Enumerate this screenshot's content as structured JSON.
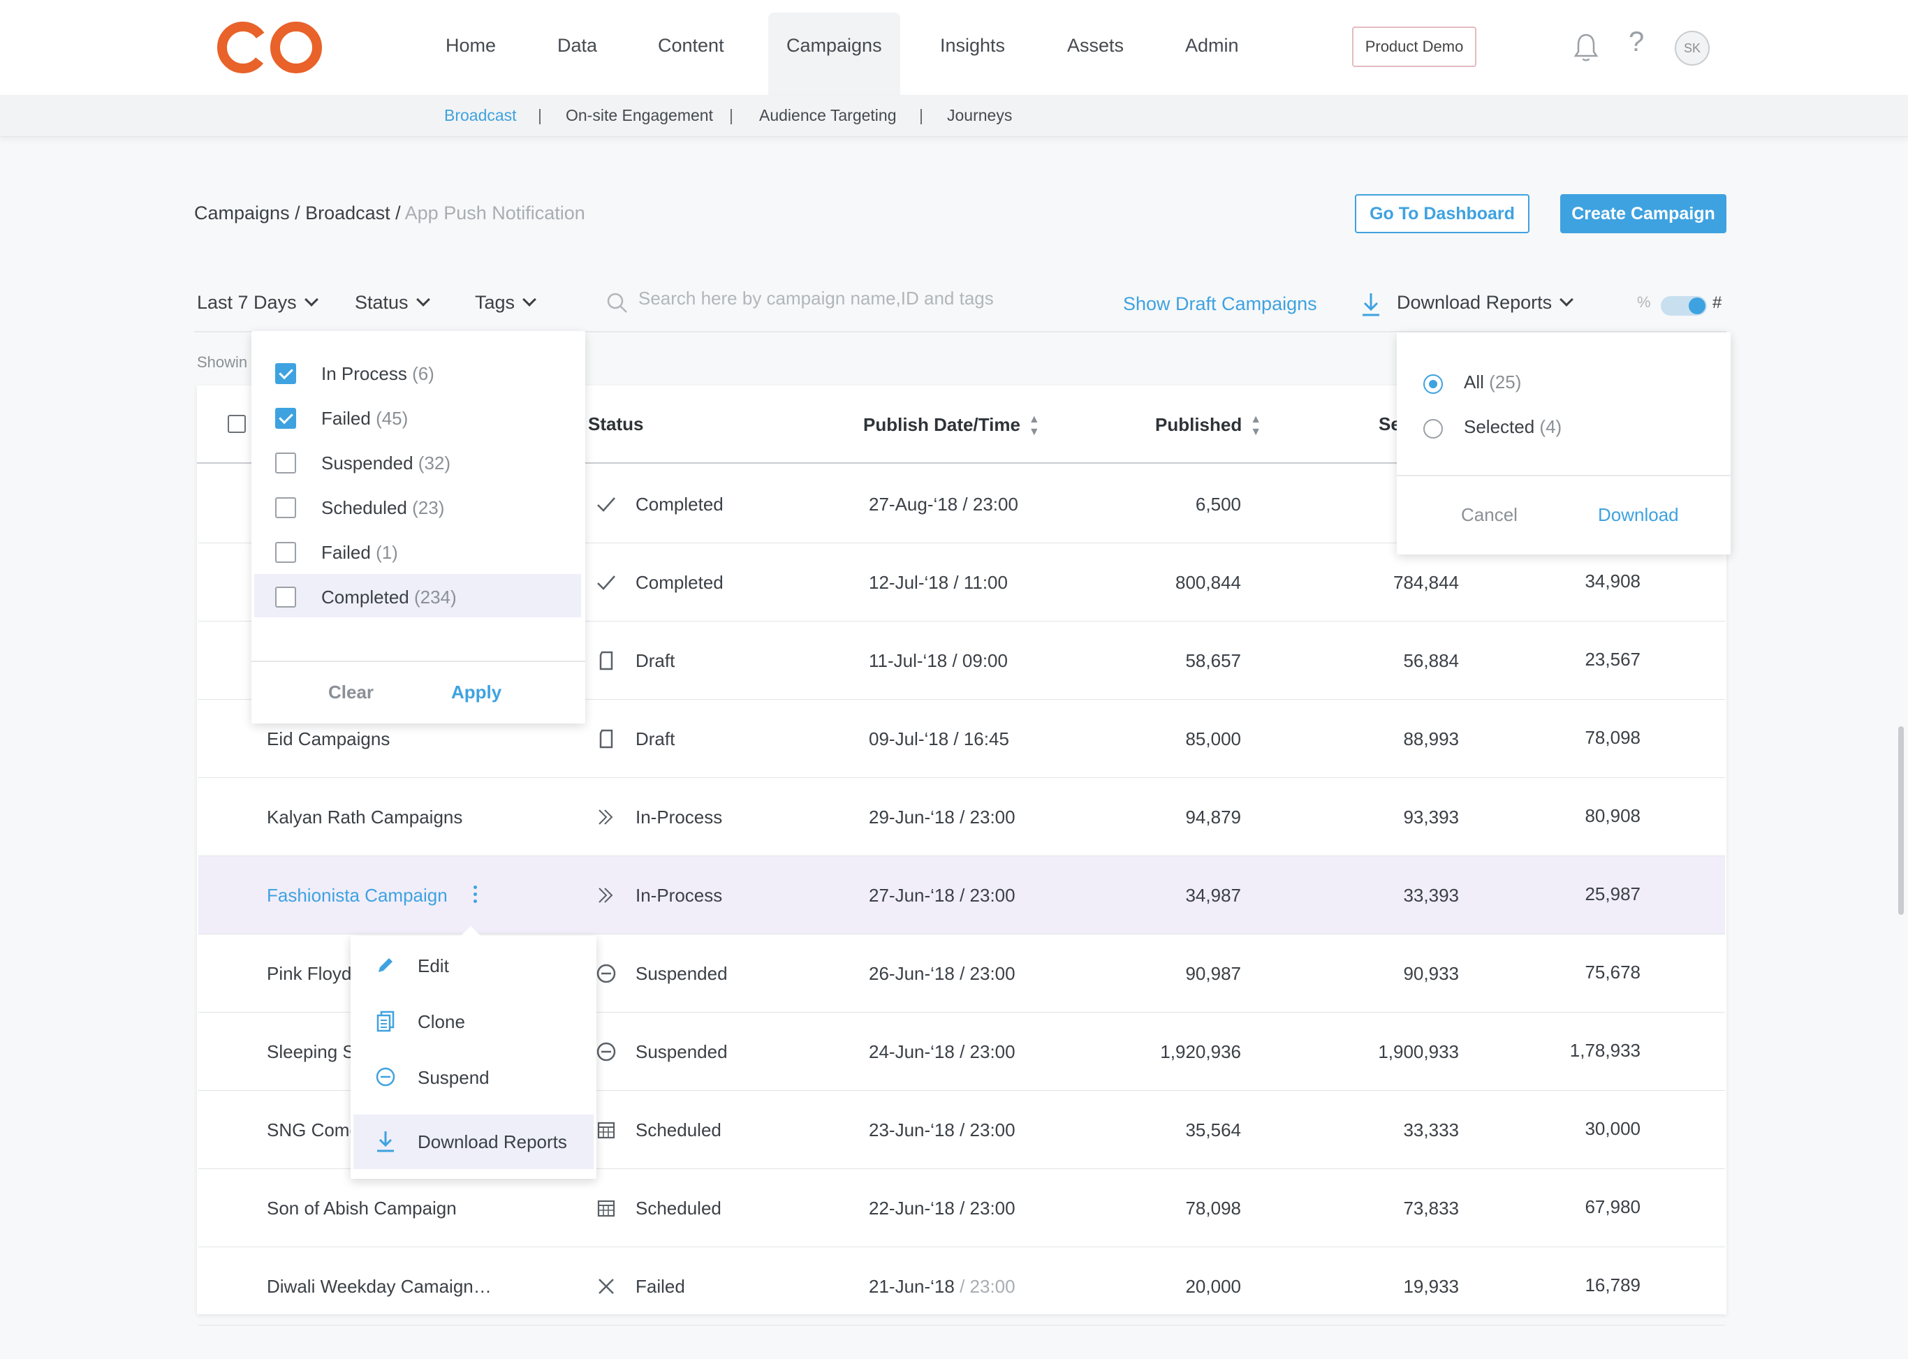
{
  "nav": {
    "items": [
      {
        "label": "Home"
      },
      {
        "label": "Data"
      },
      {
        "label": "Content"
      },
      {
        "label": "Campaigns"
      },
      {
        "label": "Insights"
      },
      {
        "label": "Assets"
      },
      {
        "label": "Admin"
      }
    ],
    "active": "Campaigns",
    "product_demo": "Product Demo",
    "help_glyph": "?",
    "avatar_initials": "SK",
    "bell_icon": "bell-icon",
    "logo_color": "#e8622a"
  },
  "subnav": {
    "items": [
      {
        "label": "Broadcast"
      },
      {
        "label": "On-site Engagement"
      },
      {
        "label": "Audience Targeting"
      },
      {
        "label": "Journeys"
      }
    ],
    "separator": "|",
    "active": "Broadcast"
  },
  "breadcrumb": {
    "part1": "Campaigns / Broadcast / ",
    "current": "App Push Notification"
  },
  "actions": {
    "go_dashboard": "Go To Dashboard",
    "create_campaign": "Create Campaign"
  },
  "filters": {
    "date": "Last 7 Days",
    "status": "Status",
    "tags": "Tags",
    "search_placeholder": "Search here by campaign name,ID and tags",
    "show_draft": "Show Draft Campaigns",
    "download_reports": "Download Reports",
    "toggle_left": "%",
    "toggle_right": "#",
    "showing_prefix": "Showin"
  },
  "table": {
    "headers": {
      "status": "Status",
      "publish": "Publish  Date/Time",
      "published": "Published",
      "sent": "Se"
    },
    "rows": [
      {
        "name": "",
        "status": "Completed",
        "status_icon": "check-icon",
        "date": "27-Aug-‘18 / 23:00",
        "date_time": "",
        "published": "6,500",
        "sent": "",
        "clicked": ""
      },
      {
        "name": "",
        "status": "Completed",
        "status_icon": "check-icon",
        "date": "12-Jul-‘18 / 11:00",
        "date_time": "",
        "published": "800,844",
        "sent": "784,844",
        "clicked": "34,908"
      },
      {
        "name": "",
        "status": "Draft",
        "status_icon": "draft-icon",
        "date": "11-Jul-‘18 / 09:00",
        "date_time": "",
        "published": "58,657",
        "sent": "56,884",
        "clicked": "23,567"
      },
      {
        "name": "Eid Campaigns",
        "status": "Draft",
        "status_icon": "draft-icon",
        "date": "09-Jul-‘18 / 16:45",
        "date_time": "",
        "published": "85,000",
        "sent": "88,993",
        "clicked": "78,098"
      },
      {
        "name": "Kalyan Rath Campaigns",
        "status": "In-Process",
        "status_icon": "in-process-icon",
        "date": "29-Jun-‘18 / 23:00",
        "date_time": "",
        "published": "94,879",
        "sent": "93,393",
        "clicked": "80,908"
      },
      {
        "name": "Fashionista Campaign",
        "status": "In-Process",
        "status_icon": "in-process-icon",
        "date": "27-Jun-‘18 / 23:00",
        "date_time": "",
        "published": "34,987",
        "sent": "33,393",
        "clicked": "25,987"
      },
      {
        "name": "Pink Floyd",
        "status": "Suspended",
        "status_icon": "suspended-icon",
        "date": "26-Jun-‘18 / 23:00",
        "date_time": "",
        "published": "90,987",
        "sent": "90,933",
        "clicked": "75,678"
      },
      {
        "name": "Sleeping S",
        "status": "Suspended",
        "status_icon": "suspended-icon",
        "date": "24-Jun-‘18 / 23:00",
        "date_time": "",
        "published": "1,920,936",
        "sent": "1,900,933",
        "clicked": "1,78,933"
      },
      {
        "name": "SNG Come",
        "status": "Scheduled",
        "status_icon": "scheduled-icon",
        "date": "23-Jun-‘18 / 23:00",
        "date_time": "",
        "published": "35,564",
        "sent": "33,333",
        "clicked": "30,000"
      },
      {
        "name": "Son of Abish Campaign",
        "status": "Scheduled",
        "status_icon": "scheduled-icon",
        "date": "22-Jun-‘18 / 23:00",
        "date_time": "",
        "published": "78,098",
        "sent": "73,833",
        "clicked": "67,980"
      },
      {
        "name": "Diwali Weekday Camaign…",
        "status": "Failed",
        "status_icon": "failed-icon",
        "date": "21-Jun-‘18",
        "date_time": " / 23:00",
        "published": "20,000",
        "sent": "19,933",
        "clicked": "16,789"
      }
    ]
  },
  "status_dropdown": {
    "options": [
      {
        "label": "In Process",
        "count": "(6)",
        "checked": true
      },
      {
        "label": "Failed",
        "count": "(45)",
        "checked": true
      },
      {
        "label": "Suspended",
        "count": "(32)",
        "checked": false
      },
      {
        "label": "Scheduled",
        "count": "(23)",
        "checked": false
      },
      {
        "label": "Failed",
        "count": "(1)",
        "checked": false
      },
      {
        "label": "Completed",
        "count": "(234)",
        "checked": false
      }
    ],
    "clear": "Clear",
    "apply": "Apply"
  },
  "download_dropdown": {
    "all": "All",
    "all_count": "(25)",
    "selected": "Selected",
    "selected_count": "(4)",
    "cancel": "Cancel",
    "download": "Download"
  },
  "context_menu": {
    "items": [
      {
        "label": "Edit",
        "icon": "pencil-icon"
      },
      {
        "label": "Clone",
        "icon": "clone-icon"
      },
      {
        "label": "Suspend",
        "icon": "suspend-icon"
      },
      {
        "label": "Download Reports",
        "icon": "download-icon"
      }
    ]
  },
  "colors": {
    "accent": "#3ea2e0",
    "highlight_row": "#f1eefa",
    "brand": "#e8622a"
  }
}
